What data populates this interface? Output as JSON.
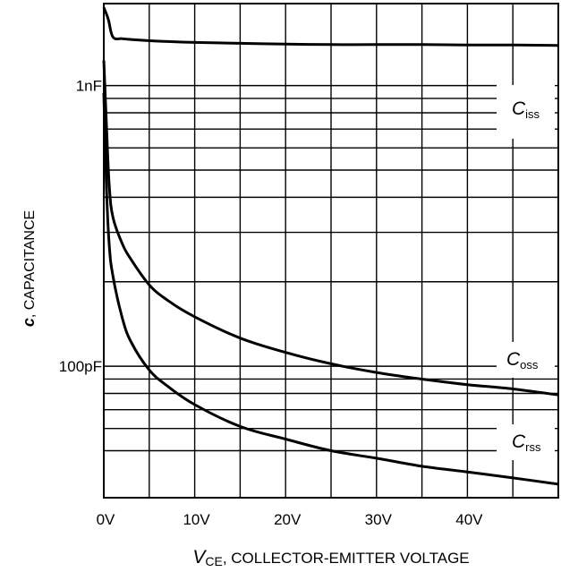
{
  "chart_data": {
    "type": "line",
    "title": "",
    "xlabel": {
      "symbol": "V",
      "subscript": "CE",
      "text": ", COLLECTOR-EMITTER VOLTAGE"
    },
    "ylabel": {
      "symbol": "c",
      "text": ", CAPACITANCE"
    },
    "x_unit": "V",
    "y_unit": "pF",
    "y_scale": "log",
    "grid": true,
    "xlim": [
      0,
      50
    ],
    "ylim": [
      34,
      1960
    ],
    "x_ticks": [
      {
        "value": 0,
        "label": "0V"
      },
      {
        "value": 10,
        "label": "10V"
      },
      {
        "value": 20,
        "label": "20V"
      },
      {
        "value": 30,
        "label": "30V"
      },
      {
        "value": 40,
        "label": "40V"
      }
    ],
    "y_ticks": [
      {
        "value": 1000,
        "label": "1nF"
      },
      {
        "value": 100,
        "label": "100pF"
      }
    ],
    "x_gridlines": [
      5,
      10,
      15,
      20,
      25,
      30,
      35,
      40,
      45
    ],
    "y_gridlines": [
      50,
      60,
      70,
      80,
      90,
      100,
      200,
      300,
      400,
      500,
      600,
      700,
      800,
      900,
      1000,
      2000
    ],
    "series": [
      {
        "name": "iss",
        "label_symbol": "C",
        "label_subscript": "iss",
        "x": [
          0,
          0.5,
          1,
          2,
          3,
          5,
          7,
          10,
          15,
          20,
          25,
          30,
          35,
          40,
          45,
          50
        ],
        "y": [
          1900,
          1720,
          1490,
          1470,
          1460,
          1445,
          1435,
          1425,
          1415,
          1405,
          1400,
          1400,
          1400,
          1395,
          1395,
          1390
        ]
      },
      {
        "name": "oss",
        "label_symbol": "C",
        "label_subscript": "oss",
        "x": [
          0,
          0.3,
          0.6,
          1,
          2,
          3,
          5,
          7,
          10,
          15,
          20,
          25,
          30,
          35,
          40,
          45,
          50
        ],
        "y": [
          1230,
          720,
          440,
          340,
          275,
          240,
          195,
          172,
          150,
          126,
          112,
          102,
          95,
          90,
          86,
          83,
          79
        ]
      },
      {
        "name": "rss",
        "label_symbol": "C",
        "label_subscript": "rss",
        "x": [
          0,
          0.3,
          0.6,
          1,
          2,
          3,
          5,
          7,
          10,
          15,
          20,
          25,
          30,
          35,
          40,
          45,
          50
        ],
        "y": [
          940,
          430,
          270,
          210,
          150,
          122,
          97,
          85,
          73,
          61,
          55,
          50,
          47,
          44,
          42,
          40,
          38
        ]
      }
    ]
  }
}
